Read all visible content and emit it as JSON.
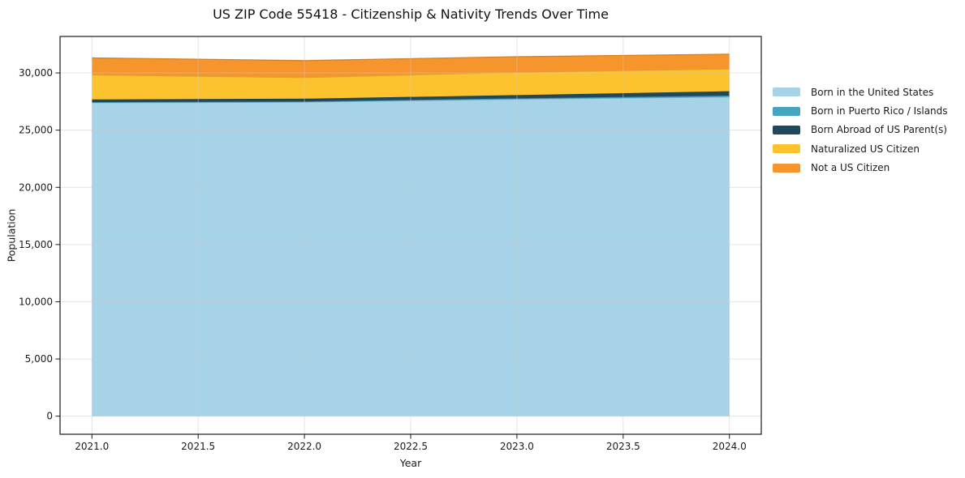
{
  "chart_data": {
    "type": "area",
    "stacked": true,
    "title": "US ZIP Code 55418 - Citizenship & Nativity Trends Over Time",
    "xlabel": "Year",
    "ylabel": "Population",
    "x": [
      2021,
      2022,
      2023,
      2024
    ],
    "series": [
      {
        "name": "Born in the United States",
        "color": "#A7D3E8",
        "values": [
          27400,
          27450,
          27700,
          27900
        ]
      },
      {
        "name": "Born in Puerto Rico / Islands",
        "color": "#45A5C1",
        "values": [
          50,
          60,
          80,
          120
        ]
      },
      {
        "name": "Born Abroad of US Parent(s)",
        "color": "#1F485C",
        "values": [
          230,
          240,
          280,
          380
        ]
      },
      {
        "name": "Naturalized US Citizen",
        "color": "#FDC32F",
        "values": [
          2150,
          1850,
          2000,
          1950
        ]
      },
      {
        "name": "Not a US Citizen",
        "color": "#F7952D",
        "values": [
          1480,
          1480,
          1360,
          1290
        ]
      }
    ],
    "stack_totals": [
      31310,
      31080,
      31420,
      31640
    ],
    "xlim": [
      2020.85,
      2024.15
    ],
    "ylim": [
      -1580,
      33190
    ],
    "x_ticks": {
      "values": [
        2021.0,
        2021.5,
        2022.0,
        2022.5,
        2023.0,
        2023.5,
        2024.0
      ],
      "labels": [
        "2021.0",
        "2021.5",
        "2022.0",
        "2022.5",
        "2023.0",
        "2023.5",
        "2024.0"
      ]
    },
    "y_ticks": {
      "values": [
        0,
        5000,
        10000,
        15000,
        20000,
        25000,
        30000
      ],
      "labels": [
        "0",
        "5,000",
        "10,000",
        "15,000",
        "20,000",
        "25,000",
        "30,000"
      ]
    },
    "grid": true,
    "legend_position": "right",
    "colors": {
      "grid": "#c9c9c9",
      "spine": "#1a1a1a",
      "tick_label": "#1a1a1a"
    }
  }
}
